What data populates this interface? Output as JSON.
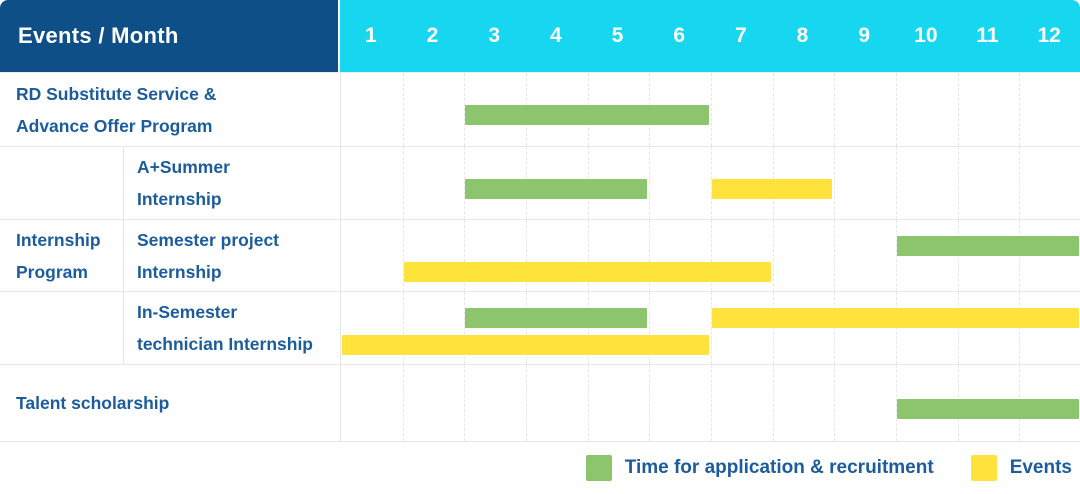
{
  "header": {
    "title": "Events / Month"
  },
  "colors": {
    "header_bg": "#0F4F88",
    "months_bg": "#17D6F0",
    "bar_green": "#8CC56D",
    "bar_yellow": "#FFE33C",
    "label_text": "#1C5C9C",
    "grid_line": "#E4E4E4"
  },
  "chart_data": {
    "type": "bar",
    "subtype": "gantt-timeline",
    "title": "Events / Month",
    "x_axis_label": "Month",
    "x_ticks": [
      "1",
      "2",
      "3",
      "4",
      "5",
      "6",
      "7",
      "8",
      "9",
      "10",
      "11",
      "12"
    ],
    "x_range": [
      1,
      12
    ],
    "grid": "on",
    "legend_position": "bottom-right",
    "series_legend": [
      {
        "key": "application",
        "label": "Time for application & recruitment",
        "color": "#8CC56D"
      },
      {
        "key": "events",
        "label": "Events",
        "color": "#FFE33C"
      }
    ],
    "group_label_lines": [
      "Internship",
      "Program"
    ],
    "rows": [
      {
        "group": "",
        "label_lines": [
          "RD Substitute Service &",
          "Advance Offer Program"
        ],
        "tracks": [
          [
            {
              "series": "application",
              "start_month": 3,
              "end_month": 6
            }
          ]
        ]
      },
      {
        "group": "Internship Program",
        "label_lines": [
          "A+Summer",
          "Internship"
        ],
        "tracks": [
          [
            {
              "series": "application",
              "start_month": 3,
              "end_month": 5
            },
            {
              "series": "events",
              "start_month": 7,
              "end_month": 8
            }
          ]
        ]
      },
      {
        "group": "Internship Program",
        "label_lines": [
          "Semester project",
          "Internship"
        ],
        "tracks": [
          [
            {
              "series": "application",
              "start_month": 10,
              "end_month": 12
            }
          ],
          [
            {
              "series": "events",
              "start_month": 2,
              "end_month": 7
            }
          ]
        ]
      },
      {
        "group": "Internship Program",
        "label_lines": [
          "In-Semester",
          "technician Internship"
        ],
        "tracks": [
          [
            {
              "series": "application",
              "start_month": 3,
              "end_month": 5
            },
            {
              "series": "events",
              "start_month": 7,
              "end_month": 12
            }
          ],
          [
            {
              "series": "events",
              "start_month": 1,
              "end_month": 6
            }
          ]
        ]
      },
      {
        "group": "",
        "label_lines": [
          "Talent scholarship"
        ],
        "tracks": [
          [
            {
              "series": "application",
              "start_month": 10,
              "end_month": 12
            }
          ]
        ]
      }
    ]
  }
}
